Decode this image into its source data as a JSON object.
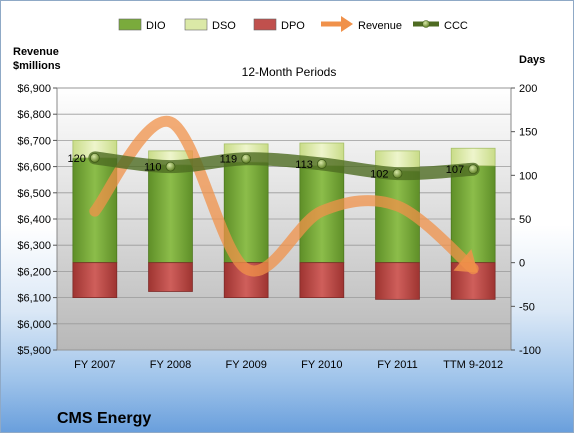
{
  "chart_data": {
    "type": "bar",
    "title": "12-Month Periods",
    "company": "CMS Energy",
    "ylabel_left": "Revenue\n$millions",
    "ylabel_right": "Days",
    "categories": [
      "FY 2007",
      "FY 2008",
      "FY 2009",
      "FY 2010",
      "FY 2011",
      "TTM 9-2012"
    ],
    "ylim_left": [
      5900,
      6900
    ],
    "yticks_left": [
      "$5,900",
      "$6,000",
      "$6,100",
      "$6,200",
      "$6,300",
      "$6,400",
      "$6,500",
      "$6,600",
      "$6,700",
      "$6,800",
      "$6,900"
    ],
    "ylim_right": [
      -100,
      200
    ],
    "yticks_right": [
      "-100",
      "-50",
      "0",
      "50",
      "100",
      "150",
      "200"
    ],
    "series": [
      {
        "name": "DIO",
        "type": "stacked-bar",
        "axis": "right",
        "values": [
          120,
          112,
          115,
          111,
          105,
          111
        ],
        "color": "#7aab3c"
      },
      {
        "name": "DSO",
        "type": "stacked-bar",
        "axis": "right",
        "values": [
          20,
          16,
          21,
          26,
          23,
          20
        ],
        "color": "#dbe9a7"
      },
      {
        "name": "DPO",
        "type": "stacked-bar",
        "axis": "right",
        "values": [
          -40,
          -33,
          -40,
          -40,
          -42,
          -42
        ],
        "color": "#c0504d"
      },
      {
        "name": "Revenue",
        "type": "line",
        "axis": "left",
        "values": [
          6430,
          6770,
          6210,
          6430,
          6450,
          6210
        ],
        "color": "#f0914a"
      },
      {
        "name": "CCC",
        "type": "line",
        "axis": "right",
        "values": [
          120,
          110,
          119,
          113,
          102,
          107
        ],
        "color": "#5a7a2a"
      }
    ],
    "ccc_labels": [
      "120",
      "110",
      "119",
      "113",
      "102",
      "107"
    ],
    "legend": {
      "position": "top",
      "items": [
        "DIO",
        "DSO",
        "DPO",
        "Revenue",
        "CCC"
      ]
    },
    "grid": true
  }
}
